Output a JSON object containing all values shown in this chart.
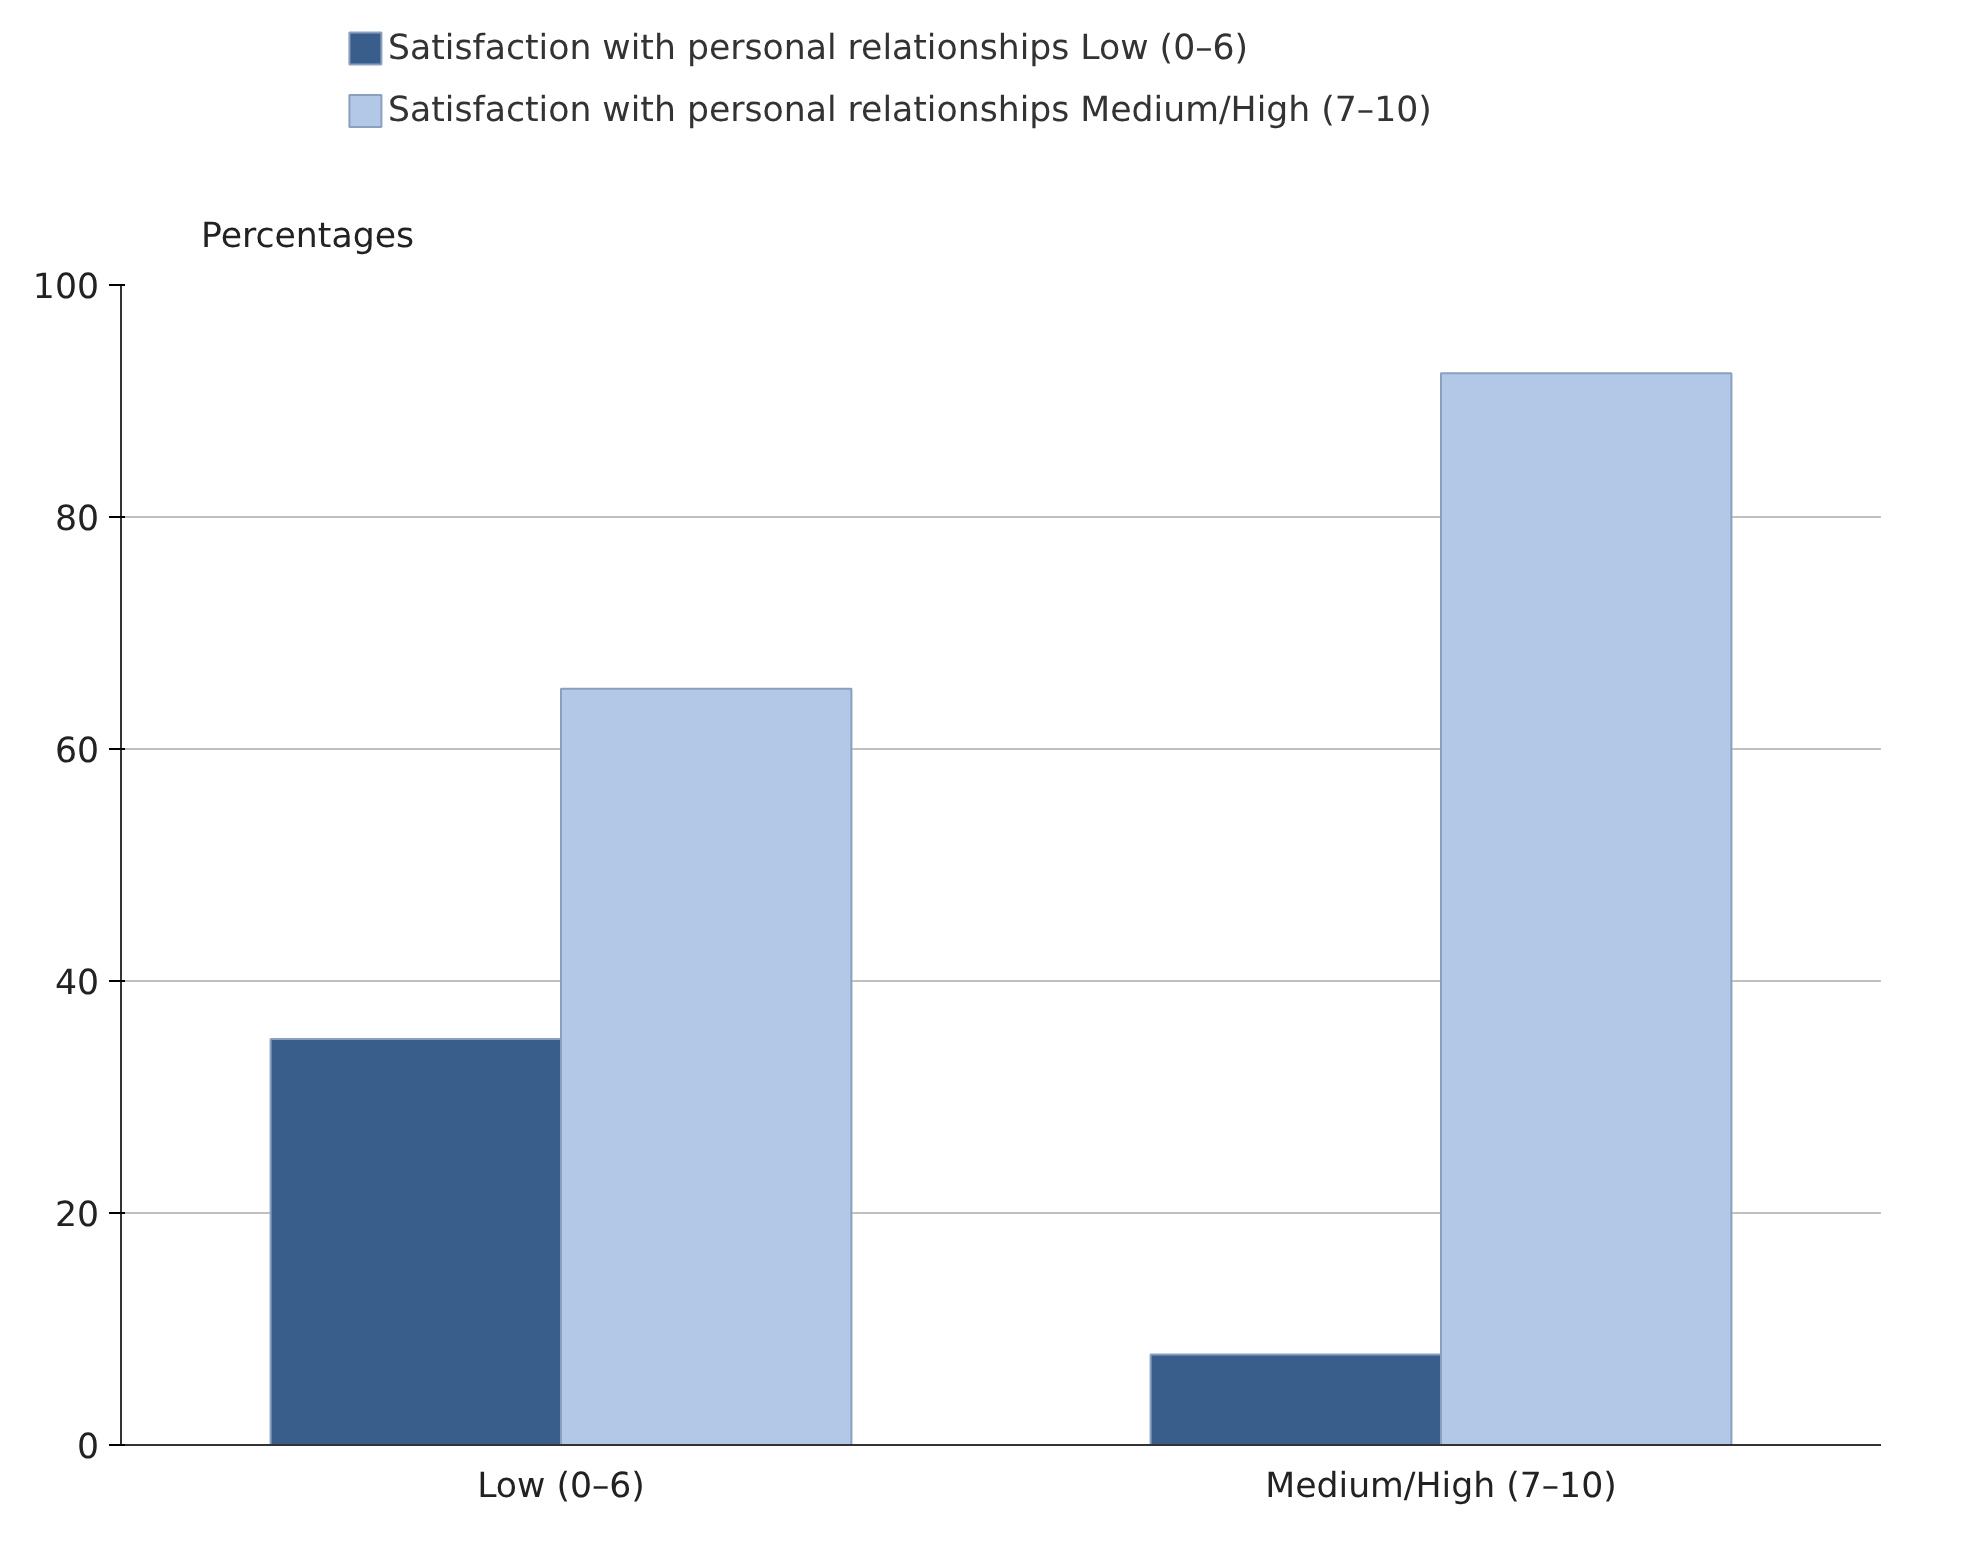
{
  "chart_data": {
    "type": "bar",
    "ylabel": "Percentages",
    "categories": [
      "Low (0–6)",
      "Medium/High (7–10)"
    ],
    "series": [
      {
        "name": "Satisfaction with personal relationships Low (0–6)",
        "color": "#3a5e8c",
        "values": [
          35,
          7.8
        ]
      },
      {
        "name": "Satisfaction with personal relationships Medium/High (7–10)",
        "color": "#b3c7e6",
        "values": [
          65.2,
          92.4
        ]
      }
    ],
    "ylim": [
      0,
      100
    ],
    "yticks": [
      0,
      20,
      40,
      60,
      80,
      100
    ],
    "grid": "y",
    "legend": "top left"
  }
}
